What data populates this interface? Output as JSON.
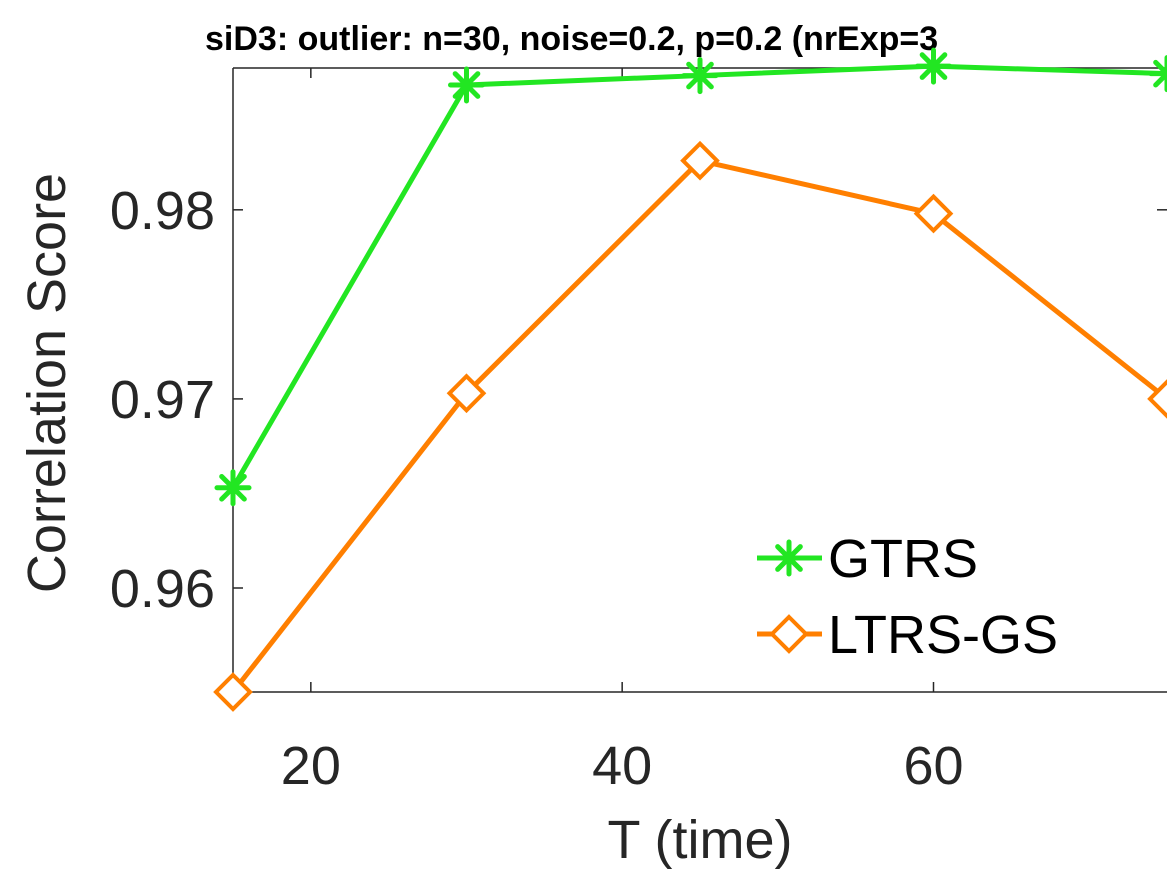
{
  "chart_data": {
    "type": "line",
    "title": "siD3: outlier: n=30, noise=0.2, p=0.2 (nrExp=3",
    "xlabel": "T (time)",
    "ylabel": "Correlation Score",
    "xlim": [
      15,
      75
    ],
    "ylim": [
      0.9545,
      0.9875
    ],
    "xticks": [
      20,
      40,
      60
    ],
    "xtick_labels": [
      "20",
      "40",
      "60"
    ],
    "yticks": [
      0.96,
      0.97,
      0.98
    ],
    "ytick_labels": [
      "0.96",
      "0.97",
      "0.98"
    ],
    "grid": false,
    "legend_position": "lower-right",
    "x": [
      15,
      30,
      45,
      60,
      75
    ],
    "series": [
      {
        "name": "GTRS",
        "color": "#22e622",
        "marker": "asterisk",
        "values": [
          0.9653,
          0.9866,
          0.9871,
          0.9876,
          0.9872
        ]
      },
      {
        "name": "LTRS-GS",
        "color": "#ff7f00",
        "marker": "diamond",
        "values": [
          0.9545,
          0.9703,
          0.9826,
          0.9798,
          0.97
        ]
      }
    ]
  }
}
